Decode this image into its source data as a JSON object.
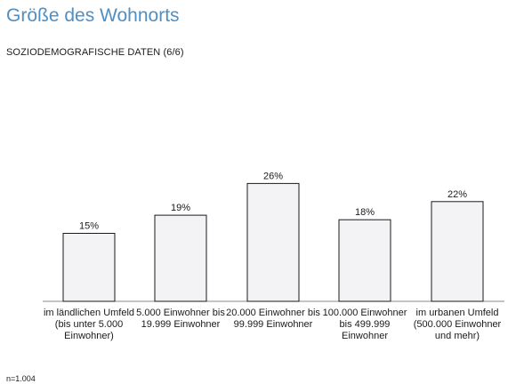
{
  "header": {
    "title": "Größe des Wohnorts",
    "subtitle": "SOZIODEMOGRAFISCHE DATEN (6/6)"
  },
  "footnote": "n=1.004",
  "colors": {
    "title": "#4f8fc3",
    "bar_fill": "#f3f3f5",
    "bar_stroke": "#1a1a1a"
  },
  "chart_data": {
    "type": "bar",
    "title": "",
    "xlabel": "",
    "ylabel": "",
    "ylim": [
      0,
      30
    ],
    "grid": false,
    "categories": [
      "im ländlichen Umfeld (bis unter 5.000 Einwohner)",
      "5.000 Einwohner bis 19.999 Einwohner",
      "20.000 Einwohner bis 99.999 Einwohner",
      "100.000 Einwohner bis 499.999 Einwohner",
      "im urbanen Umfeld (500.000 Einwohner und mehr)"
    ],
    "values": [
      15,
      19,
      26,
      18,
      22
    ],
    "value_labels": [
      "15%",
      "19%",
      "26%",
      "18%",
      "22%"
    ]
  }
}
